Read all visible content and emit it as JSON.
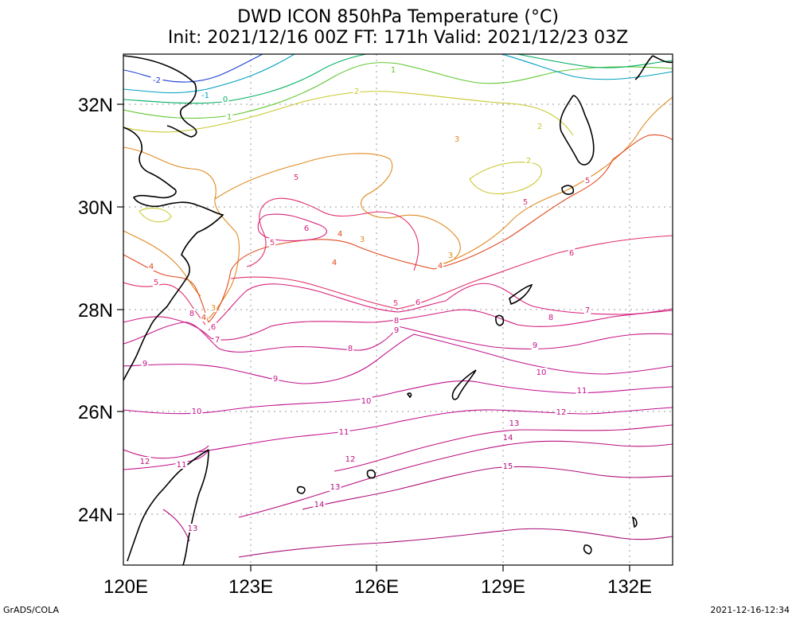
{
  "title": {
    "line1": "DWD ICON 850hPa Temperature (°C)",
    "line2": "Init: 2021/12/16 00Z  FT: 171h  Valid: 2021/12/23 03Z"
  },
  "credit": "GrADS/COLA",
  "timestamp": "2021-12-16-12:34",
  "axes": {
    "lat_labels": [
      "32N",
      "30N",
      "28N",
      "26N",
      "24N"
    ],
    "lon_labels": [
      "120E",
      "123E",
      "126E",
      "129E",
      "132E"
    ]
  },
  "colors": {
    "c-2": "#1b40d0",
    "c-1": "#00a0c0",
    "c0": "#00b060",
    "c1": "#60c830",
    "c2": "#c8c830",
    "c3": "#e08a20",
    "c4": "#e04a20",
    "c5": "#e0306a",
    "c6": "#d8207a",
    "c7": "#d01c80",
    "c8": "#c81888",
    "c9": "#c0148c",
    "c10": "#c01090",
    "c11": "#c0108c",
    "c12": "#c01080",
    "c13": "#b81080",
    "c14": "#b0107a",
    "c15": "#a80e78"
  },
  "contour_labels": [
    {
      "text": "-2",
      "level": "c-2"
    },
    {
      "text": "-1",
      "level": "c-1"
    },
    {
      "text": "0",
      "level": "c0"
    },
    {
      "text": "1",
      "level": "c1"
    },
    {
      "text": "1",
      "level": "c1"
    },
    {
      "text": "2",
      "level": "c2"
    },
    {
      "text": "2",
      "level": "c2"
    },
    {
      "text": "2",
      "level": "c2"
    },
    {
      "text": "3",
      "level": "c3"
    },
    {
      "text": "3",
      "level": "c3"
    },
    {
      "text": "3",
      "level": "c3"
    },
    {
      "text": "3",
      "level": "c3"
    },
    {
      "text": "4",
      "level": "c4"
    },
    {
      "text": "4",
      "level": "c4"
    },
    {
      "text": "4",
      "level": "c4"
    },
    {
      "text": "4",
      "level": "c4"
    },
    {
      "text": "4",
      "level": "c4"
    },
    {
      "text": "5",
      "level": "c5"
    },
    {
      "text": "5",
      "level": "c5"
    },
    {
      "text": "5",
      "level": "c5"
    },
    {
      "text": "5",
      "level": "c5"
    },
    {
      "text": "5",
      "level": "c5"
    },
    {
      "text": "5",
      "level": "c5"
    },
    {
      "text": "6",
      "level": "c6"
    },
    {
      "text": "6",
      "level": "c6"
    },
    {
      "text": "6",
      "level": "c6"
    },
    {
      "text": "6",
      "level": "c6"
    },
    {
      "text": "7",
      "level": "c7"
    },
    {
      "text": "7",
      "level": "c7"
    },
    {
      "text": "8",
      "level": "c8"
    },
    {
      "text": "8",
      "level": "c8"
    },
    {
      "text": "8",
      "level": "c8"
    },
    {
      "text": "8",
      "level": "c8"
    },
    {
      "text": "9",
      "level": "c9"
    },
    {
      "text": "9",
      "level": "c9"
    },
    {
      "text": "9",
      "level": "c9"
    },
    {
      "text": "9",
      "level": "c9"
    },
    {
      "text": "10",
      "level": "c10"
    },
    {
      "text": "10",
      "level": "c10"
    },
    {
      "text": "10",
      "level": "c10"
    },
    {
      "text": "11",
      "level": "c11"
    },
    {
      "text": "11",
      "level": "c11"
    },
    {
      "text": "11",
      "level": "c11"
    },
    {
      "text": "12",
      "level": "c12"
    },
    {
      "text": "12",
      "level": "c12"
    },
    {
      "text": "12",
      "level": "c12"
    },
    {
      "text": "13",
      "level": "c13"
    },
    {
      "text": "13",
      "level": "c13"
    },
    {
      "text": "13",
      "level": "c13"
    },
    {
      "text": "14",
      "level": "c14"
    },
    {
      "text": "14",
      "level": "c14"
    },
    {
      "text": "15",
      "level": "c15"
    }
  ]
}
